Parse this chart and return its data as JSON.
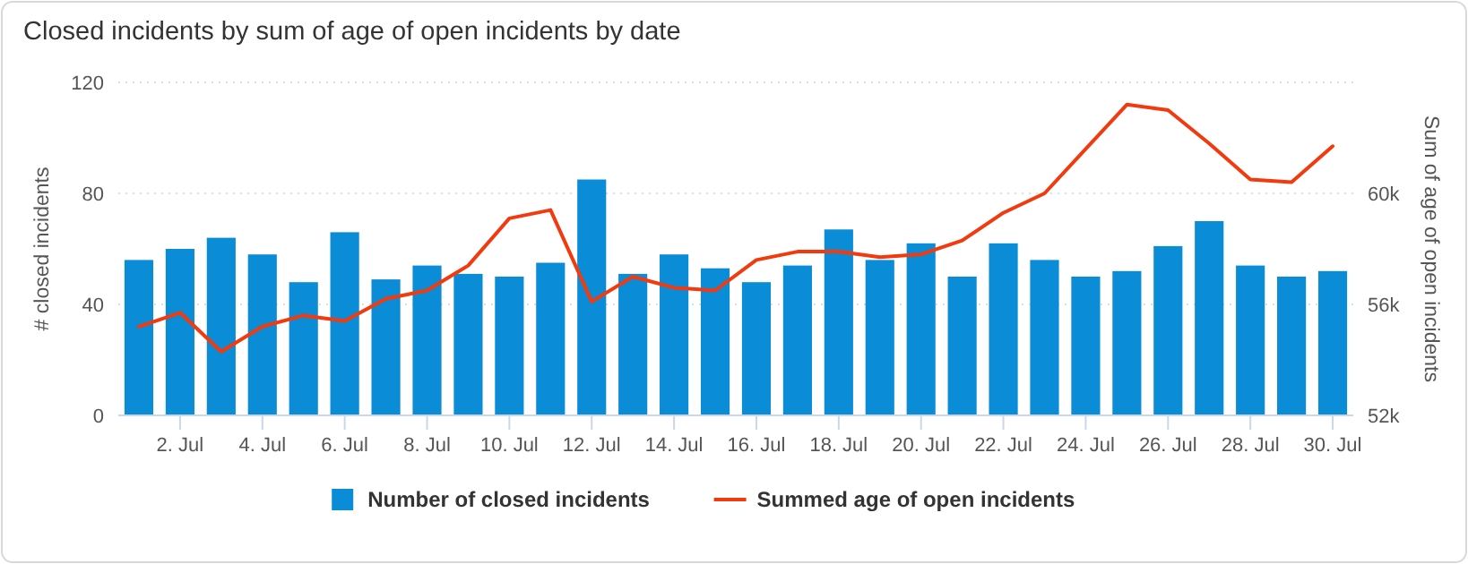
{
  "chart_data": {
    "type": "bar",
    "title": "Closed incidents by sum of age of open incidents by date",
    "ylabel": "# closed incidents",
    "y2label": "Sum of age of open incidents",
    "categories": [
      null,
      "2. Jul",
      null,
      "4. Jul",
      null,
      "6. Jul",
      null,
      "8. Jul",
      null,
      "10. Jul",
      null,
      "12. Jul",
      null,
      "14. Jul",
      null,
      "16. Jul",
      null,
      "18. Jul",
      null,
      "20. Jul",
      null,
      "22. Jul",
      null,
      "24. Jul",
      null,
      "26. Jul",
      null,
      "28. Jul",
      null,
      "30. Jul"
    ],
    "series": [
      {
        "name": "Number of closed incidents",
        "color": "#0b8cd6",
        "values": [
          56,
          60,
          64,
          58,
          48,
          66,
          49,
          54,
          51,
          50,
          55,
          85,
          51,
          58,
          53,
          48,
          54,
          67,
          56,
          62,
          50,
          62,
          56,
          50,
          52,
          61,
          70,
          54,
          50,
          52
        ]
      },
      {
        "name": "Summed age of open incidents",
        "type": "line",
        "axis": "y2",
        "color": "#f23a0e",
        "values": [
          55200,
          55700,
          54300,
          55200,
          55600,
          55400,
          56200,
          56500,
          57400,
          59100,
          59400,
          56100,
          57000,
          56600,
          56500,
          57600,
          57900,
          57900,
          57700,
          57800,
          58300,
          59300,
          60000,
          61600,
          63200,
          63000,
          61800,
          60500,
          60400,
          61700
        ]
      }
    ],
    "ylim": [
      0,
      120
    ],
    "yticks": [
      0,
      40,
      80,
      120
    ],
    "y2lim": [
      52000,
      64000
    ],
    "y2ticks": [
      {
        "value": 52000,
        "label": "52k"
      },
      {
        "value": 56000,
        "label": "56k"
      },
      {
        "value": 60000,
        "label": "60k"
      }
    ],
    "grid": "y",
    "legend": "bottom",
    "marker": "none",
    "line_style": "solid"
  }
}
